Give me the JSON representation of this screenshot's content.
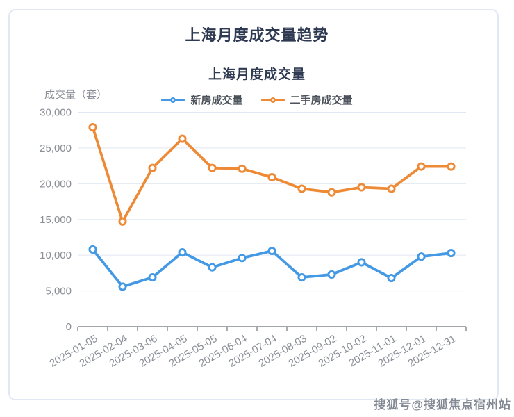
{
  "page": {
    "title": "上海月度成交量趋势",
    "subtitle": "上海月度成交量",
    "watermark": "搜狐号@搜狐焦点宿州站"
  },
  "legend": [
    {
      "label": "新房成交量",
      "color": "#4499e4"
    },
    {
      "label": "二手房成交量",
      "color": "#ee8a35"
    }
  ],
  "colors": {
    "title": "#2e3a52",
    "axis_text": "#8a8e96",
    "axis_line": "#83878d",
    "grid_line": "#e2e8f2",
    "new_homes": "#4499e4",
    "second_hand": "#ee8a35"
  },
  "chart_data": {
    "type": "line",
    "title": "上海月度成交量",
    "xlabel": "",
    "ylabel": "成交量（套）",
    "ylim": [
      0,
      30000
    ],
    "grid": true,
    "legend_position": "top",
    "yticks": [
      0,
      5000,
      10000,
      15000,
      20000,
      25000,
      30000
    ],
    "ytick_labels": [
      "0",
      "5,000",
      "10,000",
      "15,000",
      "20,000",
      "25,000",
      "30,000"
    ],
    "categories": [
      "2025-01-05",
      "2025-02-04",
      "2025-03-06",
      "2025-04-05",
      "2025-05-05",
      "2025-06-04",
      "2025-07-04",
      "2025-08-03",
      "2025-09-02",
      "2025-10-02",
      "2025-11-01",
      "2025-12-01",
      "2025-12-31"
    ],
    "series": [
      {
        "name": "新房成交量",
        "color": "#4499e4",
        "values": [
          10800,
          5600,
          6900,
          10400,
          8300,
          9600,
          10600,
          6900,
          7300,
          9000,
          6800,
          9800,
          10300
        ]
      },
      {
        "name": "二手房成交量",
        "color": "#ee8a35",
        "values": [
          27900,
          14700,
          22200,
          26300,
          22200,
          22100,
          20900,
          19300,
          18800,
          19500,
          19300,
          22400,
          22400
        ]
      }
    ]
  }
}
